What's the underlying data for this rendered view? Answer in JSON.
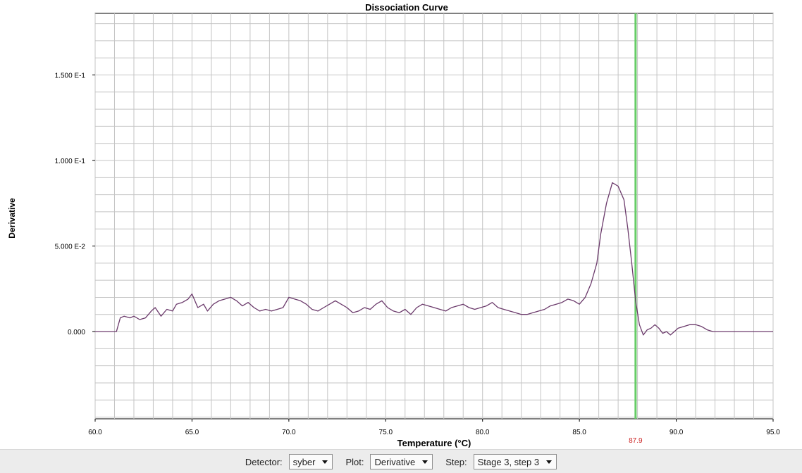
{
  "chart_data": {
    "type": "line",
    "title": "Dissociation Curve",
    "xlabel": "Temperature (°C)",
    "ylabel": "Derivative",
    "xlim": [
      60.0,
      95.0
    ],
    "ylim": [
      -0.051,
      0.186
    ],
    "x_ticks": [
      "60.0",
      "65.0",
      "70.0",
      "75.0",
      "80.0",
      "85.0",
      "90.0",
      "95.0"
    ],
    "y_ticks": [
      {
        "value": 0.15,
        "label": "1.500 E-1"
      },
      {
        "value": 0.1,
        "label": "1.000 E-1"
      },
      {
        "value": 0.05,
        "label": "5.000 E-2"
      },
      {
        "value": 0.0,
        "label": "0.000"
      }
    ],
    "grid": true,
    "marker": {
      "x": 87.9,
      "label": "87.9",
      "color": "#66cc66",
      "label_color": "#cc2222"
    },
    "series": [
      {
        "color": "#6b3a6b",
        "x": [
          60.0,
          61.1,
          61.3,
          61.5,
          61.8,
          62.0,
          62.3,
          62.6,
          62.9,
          63.1,
          63.4,
          63.7,
          64.0,
          64.2,
          64.5,
          64.8,
          65.0,
          65.3,
          65.6,
          65.8,
          66.1,
          66.4,
          66.7,
          67.0,
          67.3,
          67.6,
          67.9,
          68.2,
          68.5,
          68.8,
          69.1,
          69.4,
          69.7,
          70.0,
          70.3,
          70.6,
          70.9,
          71.2,
          71.5,
          71.8,
          72.1,
          72.4,
          72.7,
          73.0,
          73.3,
          73.6,
          73.9,
          74.2,
          74.5,
          74.8,
          75.1,
          75.4,
          75.7,
          76.0,
          76.3,
          76.6,
          76.9,
          77.2,
          77.5,
          77.8,
          78.1,
          78.4,
          78.7,
          79.0,
          79.3,
          79.6,
          79.9,
          80.2,
          80.5,
          80.8,
          81.1,
          81.4,
          81.7,
          82.0,
          82.3,
          82.6,
          82.9,
          83.2,
          83.5,
          83.8,
          84.1,
          84.4,
          84.7,
          85.0,
          85.3,
          85.6,
          85.9,
          86.1,
          86.4,
          86.7,
          87.0,
          87.3,
          87.5,
          87.7,
          87.9,
          88.1,
          88.3,
          88.5,
          88.7,
          88.9,
          89.1,
          89.3,
          89.5,
          89.7,
          89.9,
          90.1,
          90.4,
          90.7,
          91.0,
          91.3,
          91.6,
          91.9,
          92.2,
          92.5,
          92.8,
          93.1,
          93.4,
          93.7,
          94.0,
          95.0
        ],
        "y": [
          0.0,
          0.0,
          0.008,
          0.009,
          0.008,
          0.009,
          0.007,
          0.008,
          0.012,
          0.014,
          0.009,
          0.013,
          0.012,
          0.016,
          0.017,
          0.019,
          0.022,
          0.014,
          0.016,
          0.012,
          0.016,
          0.018,
          0.019,
          0.02,
          0.018,
          0.015,
          0.017,
          0.014,
          0.012,
          0.013,
          0.012,
          0.013,
          0.014,
          0.02,
          0.019,
          0.018,
          0.016,
          0.013,
          0.012,
          0.014,
          0.016,
          0.018,
          0.016,
          0.014,
          0.011,
          0.012,
          0.014,
          0.013,
          0.016,
          0.018,
          0.014,
          0.012,
          0.011,
          0.013,
          0.01,
          0.014,
          0.016,
          0.015,
          0.014,
          0.013,
          0.012,
          0.014,
          0.015,
          0.016,
          0.014,
          0.013,
          0.014,
          0.015,
          0.017,
          0.014,
          0.013,
          0.012,
          0.011,
          0.01,
          0.01,
          0.011,
          0.012,
          0.013,
          0.015,
          0.016,
          0.017,
          0.019,
          0.018,
          0.016,
          0.02,
          0.028,
          0.04,
          0.057,
          0.075,
          0.087,
          0.085,
          0.077,
          0.06,
          0.04,
          0.018,
          0.004,
          -0.002,
          0.001,
          0.002,
          0.004,
          0.002,
          -0.001,
          0.0,
          -0.002,
          0.0,
          0.002,
          0.003,
          0.004,
          0.004,
          0.003,
          0.001,
          0.0,
          0.0,
          0.0,
          0.0,
          0.0,
          0.0,
          0.0,
          0.0,
          0.0
        ]
      }
    ]
  },
  "toolbar": {
    "detector_label": "Detector:",
    "detector_value": "syber",
    "plot_label": "Plot:",
    "plot_value": "Derivative",
    "step_label": "Step:",
    "step_value": "Stage 3, step 3"
  }
}
